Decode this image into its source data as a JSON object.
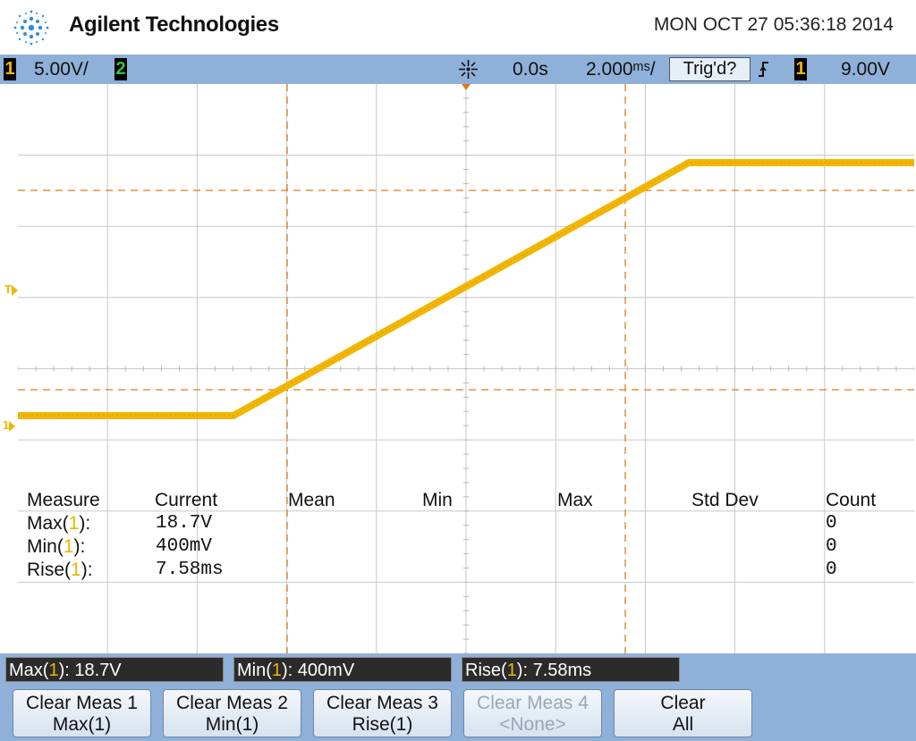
{
  "header": {
    "brand": "Agilent Technologies",
    "datetime": "MON OCT 27 05:36:18 2014",
    "logo_icon": "agilent-spark-logo-icon"
  },
  "statusbar": {
    "ch1_badge": "1",
    "ch1_scale": "5.00V/",
    "ch2_badge": "2",
    "run_icon": "acquisition-spark-icon",
    "time_delay": "0.0s",
    "time_scale": "2.000&/",
    "trigger_status": "Trig'd?",
    "trigger_edge_icon": "rising-edge-icon",
    "trigger_source": "1",
    "trigger_level": "9.00V"
  },
  "colors": {
    "ch1": "#f2b600",
    "ch2": "#35c23a",
    "cursor": "#e07b18",
    "grid": "#c8c8c8",
    "bar": "#8fb0d8"
  },
  "waveform": {
    "note_markers": [
      "T",
      "1"
    ]
  },
  "measurements": {
    "headers": [
      "Measure",
      "Current",
      "Mean",
      "Min",
      "Max",
      "Std Dev",
      "Count"
    ],
    "rows": [
      {
        "name_pre": "Max(",
        "ch": "1",
        "name_post": "):",
        "current": "18.7V",
        "count": "0"
      },
      {
        "name_pre": "Min(",
        "ch": "1",
        "name_post": "):",
        "current": "400mV",
        "count": "0"
      },
      {
        "name_pre": "Rise(",
        "ch": "1",
        "name_post": "):",
        "current": "7.58ms",
        "count": "0"
      }
    ]
  },
  "measure_bar": [
    {
      "pre": "Max(",
      "ch": "1",
      "post": "): 18.7V"
    },
    {
      "pre": "Min(",
      "ch": "1",
      "post": "): 400mV"
    },
    {
      "pre": "Rise(",
      "ch": "1",
      "post": "): 7.58ms"
    }
  ],
  "softkeys": [
    {
      "line1": "Clear Meas 1",
      "line2": "Max(1)",
      "enabled": true
    },
    {
      "line1": "Clear Meas 2",
      "line2": "Min(1)",
      "enabled": true
    },
    {
      "line1": "Clear Meas 3",
      "line2": "Rise(1)",
      "enabled": true
    },
    {
      "line1": "Clear Meas 4",
      "line2": "<None>",
      "enabled": false
    },
    {
      "line1": "Clear",
      "line2": "All",
      "enabled": true
    }
  ]
}
